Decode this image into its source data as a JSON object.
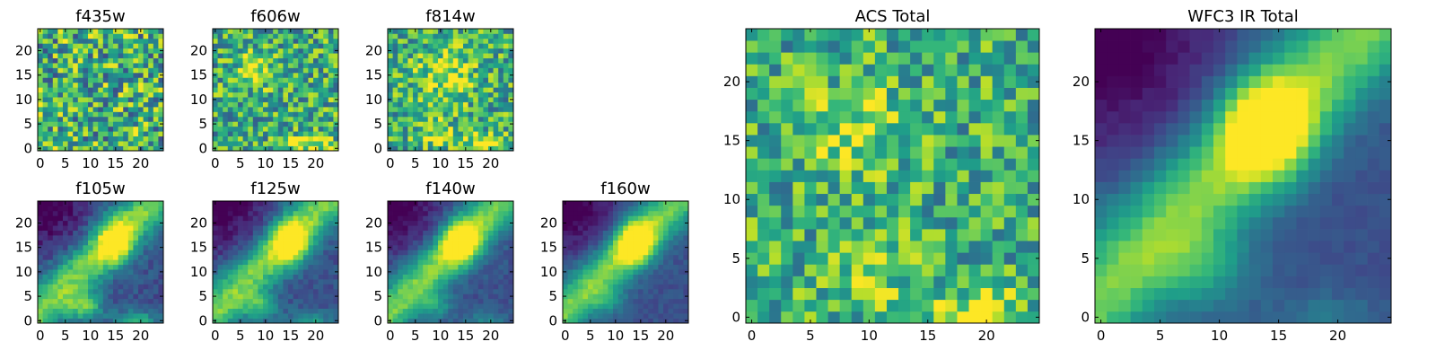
{
  "figure": {
    "colormap": "viridis",
    "colormap_stops": [
      "#440154",
      "#482878",
      "#3e4989",
      "#31688e",
      "#26828e",
      "#1f9e89",
      "#35b779",
      "#6ece58",
      "#b5de2b",
      "#fde725"
    ]
  },
  "chart_data": [
    {
      "type": "heatmap",
      "title": "f435w",
      "grid": 25,
      "xlim": [
        -0.5,
        24.5
      ],
      "ylim": [
        -0.5,
        24.5
      ],
      "xticks": [
        0,
        5,
        10,
        15,
        20
      ],
      "yticks": [
        0,
        5,
        10,
        15,
        20
      ],
      "pattern": "noise",
      "noise": 0.38,
      "blobs": []
    },
    {
      "type": "heatmap",
      "title": "f606w",
      "grid": 25,
      "xlim": [
        -0.5,
        24.5
      ],
      "ylim": [
        -0.5,
        24.5
      ],
      "xticks": [
        0,
        5,
        10,
        15,
        20
      ],
      "yticks": [
        0,
        5,
        10,
        15,
        20
      ],
      "pattern": "noise",
      "noise": 0.32,
      "blobs": [
        {
          "x": 8,
          "y": 16,
          "sx": 2.5,
          "sy": 2.5,
          "a": 0.25
        },
        {
          "x": 19,
          "y": 1,
          "sx": 3,
          "sy": 1.5,
          "a": 0.35
        }
      ]
    },
    {
      "type": "heatmap",
      "title": "f814w",
      "grid": 25,
      "xlim": [
        -0.5,
        24.5
      ],
      "ylim": [
        -0.5,
        24.5
      ],
      "xticks": [
        0,
        5,
        10,
        15,
        20
      ],
      "yticks": [
        0,
        5,
        10,
        15,
        20
      ],
      "pattern": "noise",
      "noise": 0.3,
      "blobs": [
        {
          "x": 11,
          "y": 15,
          "sx": 4,
          "sy": 4,
          "a": 0.3
        },
        {
          "x": 9,
          "y": 3,
          "sx": 2.5,
          "sy": 2,
          "a": 0.25
        },
        {
          "x": 19,
          "y": 1,
          "sx": 3,
          "sy": 1.5,
          "a": 0.4
        }
      ]
    },
    {
      "type": "heatmap",
      "title": "f105w",
      "grid": 25,
      "xlim": [
        -0.5,
        24.5
      ],
      "ylim": [
        -0.5,
        24.5
      ],
      "xticks": [
        0,
        5,
        10,
        15,
        20
      ],
      "yticks": [
        0,
        5,
        10,
        15,
        20
      ],
      "pattern": "galaxy",
      "noise": 0.08,
      "blobs": [
        {
          "x": 15,
          "y": 16,
          "sx": 2.5,
          "sy": 3,
          "a": 0.55
        },
        {
          "x": 9,
          "y": 3,
          "sx": 2.5,
          "sy": 2,
          "a": 0.45
        },
        {
          "x": 19,
          "y": 0,
          "sx": 3,
          "sy": 1.5,
          "a": 0.4
        }
      ]
    },
    {
      "type": "heatmap",
      "title": "f125w",
      "grid": 25,
      "xlim": [
        -0.5,
        24.5
      ],
      "ylim": [
        -0.5,
        24.5
      ],
      "xticks": [
        0,
        5,
        10,
        15,
        20
      ],
      "yticks": [
        0,
        5,
        10,
        15,
        20
      ],
      "pattern": "galaxy",
      "noise": 0.07,
      "blobs": [
        {
          "x": 15,
          "y": 16,
          "sx": 2.5,
          "sy": 3,
          "a": 0.6
        },
        {
          "x": 9,
          "y": 3,
          "sx": 2.5,
          "sy": 2,
          "a": 0.35
        },
        {
          "x": 19,
          "y": 0,
          "sx": 3,
          "sy": 1.5,
          "a": 0.3
        }
      ]
    },
    {
      "type": "heatmap",
      "title": "f140w",
      "grid": 25,
      "xlim": [
        -0.5,
        24.5
      ],
      "ylim": [
        -0.5,
        24.5
      ],
      "xticks": [
        0,
        5,
        10,
        15,
        20
      ],
      "yticks": [
        0,
        5,
        10,
        15,
        20
      ],
      "pattern": "galaxy",
      "noise": 0.06,
      "blobs": [
        {
          "x": 14,
          "y": 16,
          "sx": 2.5,
          "sy": 3,
          "a": 0.65
        },
        {
          "x": 9,
          "y": 3,
          "sx": 2.5,
          "sy": 2,
          "a": 0.25
        },
        {
          "x": 19,
          "y": 0,
          "sx": 3,
          "sy": 1.5,
          "a": 0.2
        }
      ]
    },
    {
      "type": "heatmap",
      "title": "f160w",
      "grid": 25,
      "xlim": [
        -0.5,
        24.5
      ],
      "ylim": [
        -0.5,
        24.5
      ],
      "xticks": [
        0,
        5,
        10,
        15,
        20
      ],
      "yticks": [
        0,
        5,
        10,
        15,
        20
      ],
      "pattern": "galaxy",
      "noise": 0.05,
      "blobs": [
        {
          "x": 14,
          "y": 16,
          "sx": 2.5,
          "sy": 3,
          "a": 0.7
        },
        {
          "x": 9,
          "y": 4,
          "sx": 2.5,
          "sy": 2,
          "a": 0.2
        }
      ]
    },
    {
      "type": "heatmap",
      "title": "ACS Total",
      "grid": 25,
      "xlim": [
        -0.5,
        24.5
      ],
      "ylim": [
        -0.5,
        24.5
      ],
      "xticks": [
        0,
        5,
        10,
        15,
        20
      ],
      "yticks": [
        0,
        5,
        10,
        15,
        20
      ],
      "pattern": "noise",
      "noise": 0.28,
      "blobs": [
        {
          "x": 9,
          "y": 16,
          "sx": 3,
          "sy": 3,
          "a": 0.25
        },
        {
          "x": 19,
          "y": 0,
          "sx": 3,
          "sy": 1.5,
          "a": 0.4
        },
        {
          "x": 10,
          "y": 4,
          "sx": 2.5,
          "sy": 2.5,
          "a": 0.2
        }
      ]
    },
    {
      "type": "heatmap",
      "title": "WFC3 IR Total",
      "grid": 25,
      "xlim": [
        -0.5,
        24.5
      ],
      "ylim": [
        -0.5,
        24.5
      ],
      "xticks": [
        0,
        5,
        10,
        15,
        20
      ],
      "yticks": [
        0,
        5,
        10,
        15,
        20
      ],
      "pattern": "galaxy",
      "noise": 0.03,
      "blobs": [
        {
          "x": 14,
          "y": 16,
          "sx": 2.5,
          "sy": 3,
          "a": 0.7
        },
        {
          "x": 9,
          "y": 4,
          "sx": 3,
          "sy": 2.5,
          "a": 0.25
        },
        {
          "x": 19,
          "y": 0,
          "sx": 3,
          "sy": 1.5,
          "a": 0.15
        }
      ]
    }
  ]
}
